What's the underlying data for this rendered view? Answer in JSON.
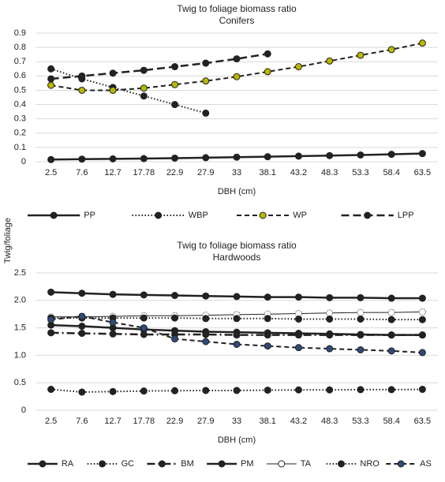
{
  "chart_data": [
    {
      "type": "line",
      "title": "Twig to foliage biomass ratio",
      "subtitle": "Conifers",
      "xlabel": "DBH (cm)",
      "ylabel": "Twig/foliage",
      "categories": [
        "2.5",
        "7.6",
        "12.7",
        "17.78",
        "22.9",
        "27.9",
        "33",
        "38.1",
        "43.2",
        "48.3",
        "53.3",
        "58.4",
        "63.5"
      ],
      "ylim": [
        0,
        0.9
      ],
      "yticks": [
        0,
        0.1,
        0.2,
        0.3,
        0.4,
        0.5,
        0.6,
        0.7,
        0.8,
        0.9
      ],
      "grid": true,
      "legend": "bottom",
      "series": [
        {
          "name": "PP",
          "color": "#222222",
          "style": "solid",
          "marker_fill": "#222222",
          "values": [
            0.015,
            0.018,
            0.02,
            0.022,
            0.025,
            0.028,
            0.032,
            0.035,
            0.039,
            0.043,
            0.047,
            0.052,
            0.057
          ]
        },
        {
          "name": "WBP",
          "color": "#222222",
          "style": "dotted",
          "marker_fill": "#222222",
          "values": [
            0.65,
            0.58,
            0.52,
            0.46,
            0.4,
            0.34,
            null,
            null,
            null,
            null,
            null,
            null,
            null
          ]
        },
        {
          "name": "WP",
          "color": "#222222",
          "style": "dashed",
          "marker_fill": "#b8b800",
          "values": [
            0.535,
            0.5,
            0.5,
            0.515,
            0.54,
            0.565,
            0.595,
            0.63,
            0.665,
            0.705,
            0.745,
            0.785,
            0.83
          ]
        },
        {
          "name": "LPP",
          "color": "#222222",
          "style": "longdash",
          "marker_fill": "#222222",
          "values": [
            0.58,
            0.6,
            0.62,
            0.64,
            0.665,
            0.69,
            0.72,
            0.755,
            null,
            null,
            null,
            null,
            null
          ]
        }
      ]
    },
    {
      "type": "line",
      "title": "Twig to foliage biomass ratio",
      "subtitle": "Hardwoods",
      "xlabel": "DBH (cm)",
      "categories": [
        "2.5",
        "7.6",
        "12.7",
        "17.78",
        "22.9",
        "27.9",
        "33",
        "38.1",
        "43.2",
        "48.3",
        "53.3",
        "58.4",
        "63.5"
      ],
      "ylim": [
        0,
        2.5
      ],
      "yticks": [
        0,
        0.5,
        {
          "value": 1,
          "label": "1.0"
        },
        1.5,
        {
          "value": 2,
          "label": "2.0"
        },
        2.5
      ],
      "grid": true,
      "legend": "bottom",
      "series": [
        {
          "name": "RA",
          "color": "#222222",
          "style": "solid",
          "marker_fill": "#222222",
          "values": [
            2.15,
            2.13,
            2.11,
            2.1,
            2.09,
            2.08,
            2.07,
            2.06,
            2.06,
            2.05,
            2.05,
            2.04,
            2.04
          ]
        },
        {
          "name": "GC",
          "color": "#222222",
          "style": "dotted",
          "marker_fill": "#222222",
          "values": [
            0.38,
            0.33,
            0.34,
            0.35,
            0.355,
            0.36,
            0.36,
            0.365,
            0.37,
            0.37,
            0.375,
            0.375,
            0.38
          ]
        },
        {
          "name": "BM",
          "color": "#222222",
          "style": "dashdot",
          "marker_fill": "#222222",
          "values": [
            1.41,
            1.4,
            1.39,
            1.38,
            1.38,
            1.38,
            1.37,
            1.37,
            1.37,
            1.37,
            1.37,
            1.37,
            1.37
          ]
        },
        {
          "name": "PM",
          "color": "#222222",
          "style": "solid",
          "marker_fill": "#222222",
          "values": [
            1.55,
            1.53,
            1.5,
            1.47,
            1.45,
            1.43,
            1.42,
            1.41,
            1.4,
            1.39,
            1.38,
            1.37,
            1.37
          ]
        },
        {
          "name": "TA",
          "color": "#222222",
          "style": "thin",
          "marker_fill": "#ffffff",
          "values": [
            1.7,
            1.7,
            1.71,
            1.72,
            1.72,
            1.73,
            1.74,
            1.75,
            1.76,
            1.77,
            1.78,
            1.78,
            1.79
          ]
        },
        {
          "name": "NRO",
          "color": "#222222",
          "style": "dotted",
          "marker_fill": "#222222",
          "values": [
            1.68,
            1.68,
            1.68,
            1.68,
            1.68,
            1.67,
            1.67,
            1.67,
            1.66,
            1.66,
            1.66,
            1.65,
            1.65
          ]
        },
        {
          "name": "AS",
          "color": "#222222",
          "style": "dashed",
          "marker_fill": "#2e4a7a",
          "values": [
            1.65,
            1.71,
            1.6,
            1.5,
            1.3,
            1.25,
            1.2,
            1.17,
            1.14,
            1.12,
            1.1,
            1.08,
            1.05
          ]
        }
      ]
    }
  ]
}
